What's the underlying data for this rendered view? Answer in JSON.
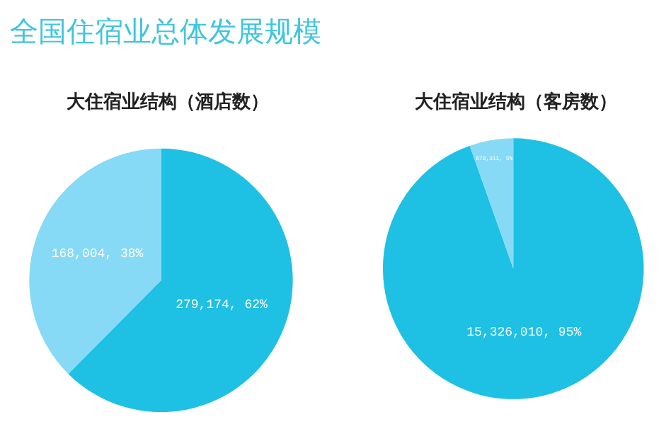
{
  "chart_data": [
    {
      "type": "pie",
      "title": "大住宿业结构（酒店数）",
      "annotations": [
        "全国住宿业总体发展规模"
      ],
      "categories": [
        null,
        null
      ],
      "values": [
        279174,
        168004
      ],
      "colors": [
        "#1ec0e4",
        "#86daf6"
      ],
      "value_labels": [
        "279,174, 62%",
        "168,004, 38%"
      ]
    },
    {
      "type": "pie",
      "title": "大住宿业结构（客房数）",
      "categories": [
        null,
        null
      ],
      "values": [
        15326010,
        878311
      ],
      "colors": [
        "#1ec0e4",
        "#86daf6"
      ],
      "value_labels": [
        "15,326,010, 95%",
        "878,311, 5%"
      ]
    }
  ]
}
